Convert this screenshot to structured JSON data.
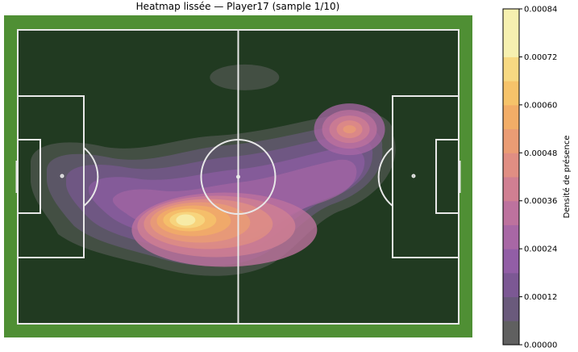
{
  "title": "Heatmap lissée — Player17 (sample 1/10)",
  "colors": {
    "grass": "#4f8f34",
    "pitch": "#213a21",
    "lines": "#e8e8e8",
    "colormap": [
      "#606060",
      "#6a5a7c",
      "#7c5894",
      "#925ea6",
      "#a867a5",
      "#bd729e",
      "#d07f92",
      "#e08e83",
      "#ea9c74",
      "#f2ad67",
      "#f6c36a",
      "#f7d982",
      "#f6f0b0"
    ]
  },
  "chart_data": {
    "type": "heatmap",
    "title": "Heatmap lissée — Player17 (sample 1/10)",
    "subject": "Player17",
    "sample": "1/10",
    "colorbar": {
      "label": "Densité de présence",
      "min": 0.0,
      "max": 0.00084,
      "ticks": [
        "0.00000",
        "0.00012",
        "0.00024",
        "0.00036",
        "0.00048",
        "0.00060",
        "0.00072",
        "0.00084"
      ],
      "levels": 14
    },
    "pitch": {
      "length": 105,
      "width": 68
    },
    "density_peaks": [
      {
        "name": "main-hotspot",
        "x": 40,
        "y": 24,
        "value": 0.00084
      },
      {
        "name": "right-hotspot",
        "x": 79,
        "y": 45,
        "value": 0.00052
      },
      {
        "name": "central-lobe",
        "x": 52,
        "y": 29,
        "value": 0.0006
      },
      {
        "name": "left-lobe",
        "x": 13,
        "y": 36,
        "value": 0.00014
      },
      {
        "name": "top-isolated-blob",
        "x": 54,
        "y": 57,
        "value": 8e-05
      }
    ]
  }
}
